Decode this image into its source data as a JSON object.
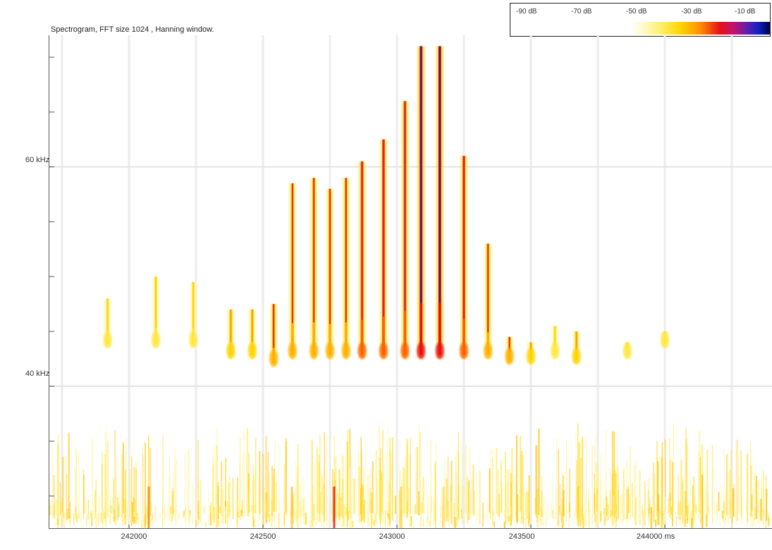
{
  "chart_data": {
    "type": "heatmap",
    "title": "Spectrogram, FFT size 1024 , Hanning window.",
    "xlabel": "",
    "ylabel": "",
    "x_unit": "ms",
    "y_unit": "kHz",
    "xlim": [
      241700,
      244400
    ],
    "ylim": [
      27,
      72
    ],
    "x_ticks": [
      "242000",
      "242500",
      "243000",
      "243500",
      "244000 ms"
    ],
    "x_tick_values": [
      242000,
      242500,
      243000,
      243500,
      244000
    ],
    "y_ticks": [
      "60 kHz",
      "40 kHz"
    ],
    "y_tick_values": [
      60,
      40
    ],
    "colorbar": {
      "labels": [
        "-90 dB",
        "-70 dB",
        "-50 dB",
        "-30 dB",
        "-10 dB"
      ],
      "colors": [
        "#ffffff",
        "#fff06a",
        "#ffd400",
        "#ff9000",
        "#e8101a",
        "#c0126e",
        "#1020c0",
        "#000044"
      ]
    },
    "pulses": [
      {
        "t": 241920,
        "f_top": 48.0,
        "f_bottom": 44.5,
        "intensity": 0.1
      },
      {
        "t": 242100,
        "f_top": 50.0,
        "f_bottom": 44.5,
        "intensity": 0.15
      },
      {
        "t": 242240,
        "f_top": 49.5,
        "f_bottom": 44.5,
        "intensity": 0.2
      },
      {
        "t": 242380,
        "f_top": 47.0,
        "f_bottom": 43.5,
        "intensity": 0.35
      },
      {
        "t": 242460,
        "f_top": 47.0,
        "f_bottom": 43.5,
        "intensity": 0.35
      },
      {
        "t": 242540,
        "f_top": 47.5,
        "f_bottom": 42.8,
        "intensity": 0.55
      },
      {
        "t": 242610,
        "f_top": 58.5,
        "f_bottom": 43.5,
        "intensity": 0.6
      },
      {
        "t": 242690,
        "f_top": 59.0,
        "f_bottom": 43.5,
        "intensity": 0.6
      },
      {
        "t": 242750,
        "f_top": 58.0,
        "f_bottom": 43.5,
        "intensity": 0.65
      },
      {
        "t": 242810,
        "f_top": 59.0,
        "f_bottom": 43.5,
        "intensity": 0.7
      },
      {
        "t": 242870,
        "f_top": 60.5,
        "f_bottom": 43.5,
        "intensity": 0.75
      },
      {
        "t": 242950,
        "f_top": 62.5,
        "f_bottom": 43.5,
        "intensity": 0.85
      },
      {
        "t": 243030,
        "f_top": 66.0,
        "f_bottom": 43.5,
        "intensity": 0.9
      },
      {
        "t": 243090,
        "f_top": 71.0,
        "f_bottom": 43.5,
        "intensity": 1.0
      },
      {
        "t": 243160,
        "f_top": 71.0,
        "f_bottom": 43.5,
        "intensity": 1.0
      },
      {
        "t": 243250,
        "f_top": 61.0,
        "f_bottom": 43.5,
        "intensity": 0.8
      },
      {
        "t": 243340,
        "f_top": 53.0,
        "f_bottom": 43.5,
        "intensity": 0.7
      },
      {
        "t": 243420,
        "f_top": 44.5,
        "f_bottom": 43.0,
        "intensity": 0.6
      },
      {
        "t": 243500,
        "f_top": 44.0,
        "f_bottom": 43.0,
        "intensity": 0.4
      },
      {
        "t": 243590,
        "f_top": 45.5,
        "f_bottom": 43.5,
        "intensity": 0.3
      },
      {
        "t": 243670,
        "f_top": 45.0,
        "f_bottom": 43.0,
        "intensity": 0.35
      },
      {
        "t": 243860,
        "f_top": 44.0,
        "f_bottom": 43.5,
        "intensity": 0.15
      },
      {
        "t": 244000,
        "f_top": 45.0,
        "f_bottom": 44.5,
        "intensity": 0.08
      }
    ]
  }
}
